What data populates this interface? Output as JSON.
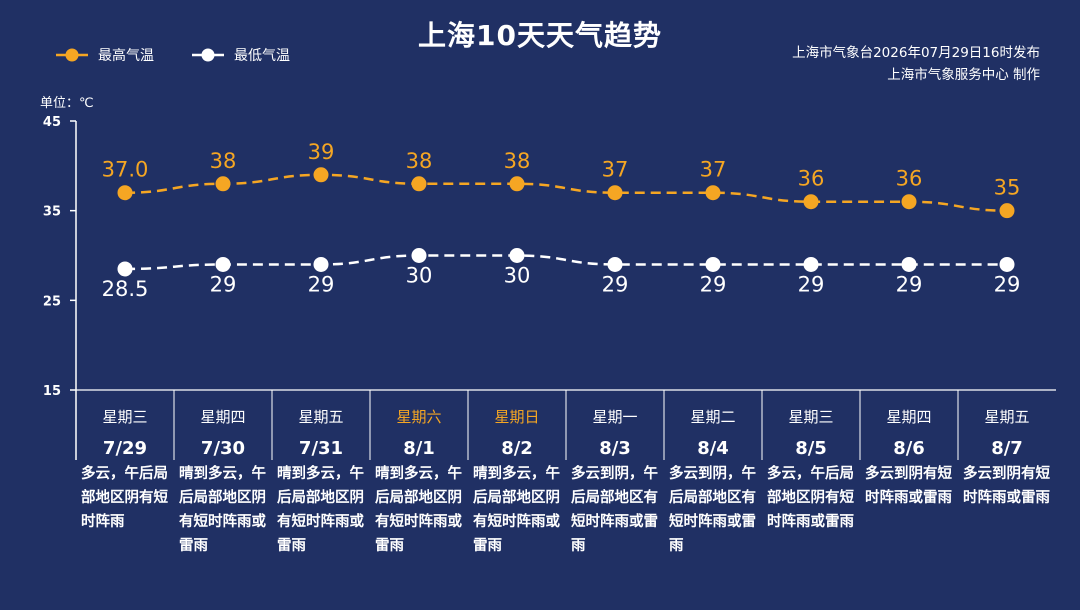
{
  "header": {
    "title": "上海10天天气趋势",
    "credit_line1": "上海市气象台2026年07月29日16时发布",
    "credit_line2": "上海市气象服务中心  制作",
    "unit": "单位：℃"
  },
  "legend": {
    "max_label": "最高气温",
    "min_label": "最低气温"
  },
  "colors": {
    "background": "#203064",
    "max_line": "#f5a623",
    "min_line": "#ffffff",
    "weekend_text": "#f5a623"
  },
  "chart_data": {
    "type": "line",
    "categories": [
      "7/29",
      "7/30",
      "7/31",
      "8/1",
      "8/2",
      "8/3",
      "8/4",
      "8/5",
      "8/6",
      "8/7"
    ],
    "series": [
      {
        "name": "最高气温",
        "values": [
          37.0,
          38,
          39,
          38,
          38,
          37,
          37,
          36,
          36,
          35
        ],
        "labels": [
          "37.0",
          "38",
          "39",
          "38",
          "38",
          "37",
          "37",
          "36",
          "36",
          "35"
        ],
        "color": "#f5a623",
        "line_style": "dashed"
      },
      {
        "name": "最低气温",
        "values": [
          28.5,
          29,
          29,
          30,
          30,
          29,
          29,
          29,
          29,
          29
        ],
        "labels": [
          "28.5",
          "29",
          "29",
          "30",
          "30",
          "29",
          "29",
          "29",
          "29",
          "29"
        ],
        "color": "#ffffff",
        "line_style": "dashed"
      }
    ],
    "ylim": [
      15,
      45
    ],
    "yticks": [
      15,
      25,
      35,
      45
    ],
    "grid": false
  },
  "days": [
    {
      "weekday": "星期三",
      "date": "7/29",
      "weekend": false,
      "desc": "多云，午后局部地区阴有短时阵雨"
    },
    {
      "weekday": "星期四",
      "date": "7/30",
      "weekend": false,
      "desc": "晴到多云，午后局部地区阴有短时阵雨或雷雨"
    },
    {
      "weekday": "星期五",
      "date": "7/31",
      "weekend": false,
      "desc": "晴到多云，午后局部地区阴有短时阵雨或雷雨"
    },
    {
      "weekday": "星期六",
      "date": "8/1",
      "weekend": true,
      "desc": "晴到多云，午后局部地区阴有短时阵雨或雷雨"
    },
    {
      "weekday": "星期日",
      "date": "8/2",
      "weekend": true,
      "desc": "晴到多云，午后局部地区阴有短时阵雨或雷雨"
    },
    {
      "weekday": "星期一",
      "date": "8/3",
      "weekend": false,
      "desc": "多云到阴，午后局部地区有短时阵雨或雷雨"
    },
    {
      "weekday": "星期二",
      "date": "8/4",
      "weekend": false,
      "desc": "多云到阴，午后局部地区有短时阵雨或雷雨"
    },
    {
      "weekday": "星期三",
      "date": "8/5",
      "weekend": false,
      "desc": "多云，午后局部地区阴有短时阵雨或雷雨"
    },
    {
      "weekday": "星期四",
      "date": "8/6",
      "weekend": false,
      "desc": "多云到阴有短时阵雨或雷雨"
    },
    {
      "weekday": "星期五",
      "date": "8/7",
      "weekend": false,
      "desc": "多云到阴有短时阵雨或雷雨"
    }
  ]
}
